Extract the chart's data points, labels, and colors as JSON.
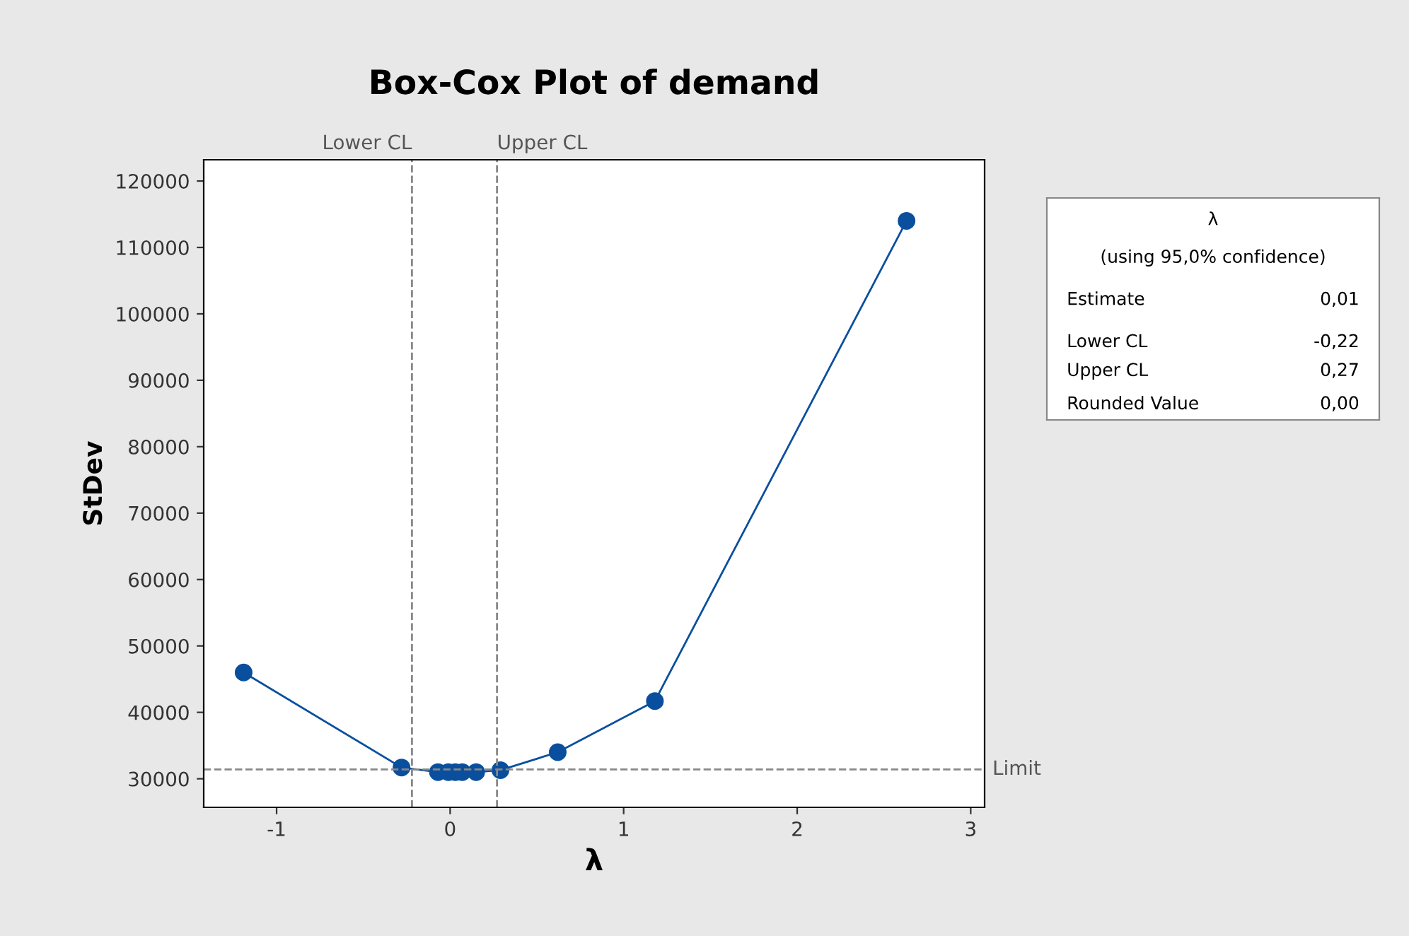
{
  "chart_data": {
    "type": "line",
    "title": "Box-Cox Plot of demand",
    "xlabel": "λ",
    "ylabel": "StDev",
    "series": [
      {
        "color": "#0a4f9e",
        "x": [
          -1.19,
          -0.28,
          -0.07,
          -0.01,
          0.03,
          0.07,
          0.15,
          0.29,
          0.62,
          1.18,
          2.63
        ],
        "values": [
          46000,
          31700,
          31000,
          31000,
          31000,
          31000,
          31000,
          31300,
          34000,
          41700,
          114000
        ]
      }
    ],
    "marker": "circle",
    "line_style": "solid",
    "grid": false,
    "legend": false,
    "xlim": [
      -1.42,
      3.08
    ],
    "xticks": [
      -1,
      0,
      1,
      2,
      3
    ],
    "ylim": [
      25700,
      123200
    ],
    "yticks": [
      30000,
      40000,
      50000,
      60000,
      70000,
      80000,
      90000,
      100000,
      110000,
      120000
    ],
    "ref_lines": [
      {
        "axis": "x",
        "value": -0.22,
        "label": "Lower CL",
        "color": "#888888",
        "line_style": "dashed"
      },
      {
        "axis": "x",
        "value": 0.27,
        "label": "Upper CL",
        "color": "#888888",
        "line_style": "dashed"
      },
      {
        "axis": "y",
        "value": 31400,
        "label": "Limit",
        "color": "#888888",
        "line_style": "dashed"
      }
    ],
    "annotations": [
      "λ",
      "(using 95,0% confidence)",
      "Estimate",
      "0,01",
      "Lower CL",
      "-0,22",
      "Upper CL",
      "0,27",
      "Rounded Value",
      "0,00"
    ]
  }
}
